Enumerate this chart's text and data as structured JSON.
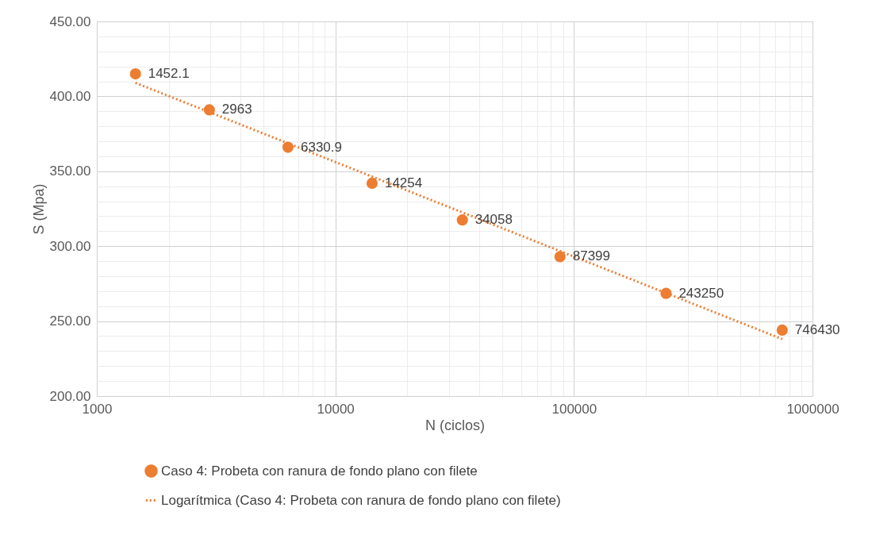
{
  "chart_data": {
    "type": "scatter",
    "xlabel": "N (ciclos)",
    "ylabel": "S (Mpa)",
    "log": "x",
    "xlim": [
      1000,
      1000000
    ],
    "ylim": [
      200,
      450
    ],
    "xticks": [
      1000,
      {
        "value": 2000,
        "label": null
      },
      {
        "value": 3000,
        "label": null
      },
      {
        "value": 4000,
        "label": null
      },
      {
        "value": 5000,
        "label": null
      },
      {
        "value": 6000,
        "label": null
      },
      {
        "value": 7000,
        "label": null
      },
      {
        "value": 8000,
        "label": null
      },
      {
        "value": 9000,
        "label": null
      },
      10000,
      {
        "value": 20000,
        "label": null
      },
      {
        "value": 30000,
        "label": null
      },
      {
        "value": 40000,
        "label": null
      },
      {
        "value": 50000,
        "label": null
      },
      {
        "value": 60000,
        "label": null
      },
      {
        "value": 70000,
        "label": null
      },
      {
        "value": 80000,
        "label": null
      },
      {
        "value": 90000,
        "label": null
      },
      100000,
      {
        "value": 200000,
        "label": null
      },
      {
        "value": 300000,
        "label": null
      },
      {
        "value": 400000,
        "label": null
      },
      {
        "value": 500000,
        "label": null
      },
      {
        "value": 600000,
        "label": null
      },
      {
        "value": 700000,
        "label": null
      },
      {
        "value": 800000,
        "label": null
      },
      {
        "value": 900000,
        "label": null
      },
      1000000
    ],
    "yticks": [
      {
        "value": 200,
        "label": "200.00"
      },
      {
        "value": 210,
        "label": null
      },
      {
        "value": 220,
        "label": null
      },
      {
        "value": 230,
        "label": null
      },
      {
        "value": 240,
        "label": null
      },
      {
        "value": 250,
        "label": "250.00"
      },
      {
        "value": 260,
        "label": null
      },
      {
        "value": 270,
        "label": null
      },
      {
        "value": 280,
        "label": null
      },
      {
        "value": 290,
        "label": null
      },
      {
        "value": 300,
        "label": "300.00"
      },
      {
        "value": 310,
        "label": null
      },
      {
        "value": 320,
        "label": null
      },
      {
        "value": 330,
        "label": null
      },
      {
        "value": 340,
        "label": null
      },
      {
        "value": 350,
        "label": "350.00"
      },
      {
        "value": 360,
        "label": null
      },
      {
        "value": 370,
        "label": null
      },
      {
        "value": 380,
        "label": null
      },
      {
        "value": 390,
        "label": null
      },
      {
        "value": 400,
        "label": "400.00"
      },
      {
        "value": 410,
        "label": null
      },
      {
        "value": 420,
        "label": null
      },
      {
        "value": 430,
        "label": null
      },
      {
        "value": 440,
        "label": null
      },
      {
        "value": 450,
        "label": "450.00"
      }
    ],
    "grid": true,
    "legend": "bottom",
    "annotations": [
      {
        "text": "1452.1",
        "x": 1452.1,
        "y": 415
      },
      {
        "text": "2963",
        "x": 2963,
        "y": 391
      },
      {
        "text": "6330.9",
        "x": 6330.9,
        "y": 366
      },
      {
        "text": "14254",
        "x": 14254,
        "y": 342
      },
      {
        "text": "34058",
        "x": 34058,
        "y": 317.5
      },
      {
        "text": "87399",
        "x": 87399,
        "y": 293
      },
      {
        "text": "243250",
        "x": 243250,
        "y": 268.5
      },
      {
        "text": "746430",
        "x": 746430,
        "y": 244
      }
    ],
    "series": [
      {
        "name": "Caso 4: Probeta con ranura de fondo plano con filete",
        "marker": "circle",
        "color": "#ed7d31",
        "x": [
          1452.1,
          2963,
          6330.9,
          14254,
          34058,
          87399,
          243250,
          746430
        ],
        "values": [
          415,
          391,
          366,
          342,
          317.5,
          293,
          268.5,
          244
        ]
      },
      {
        "name": "Logarítmica (Caso 4: Probeta con ranura de fondo plano con filete)",
        "type": "line",
        "line_style": "dotted",
        "color": "#ed7d31",
        "x": [
          1452.1,
          746430
        ],
        "values": [
          409,
          238
        ]
      }
    ]
  }
}
